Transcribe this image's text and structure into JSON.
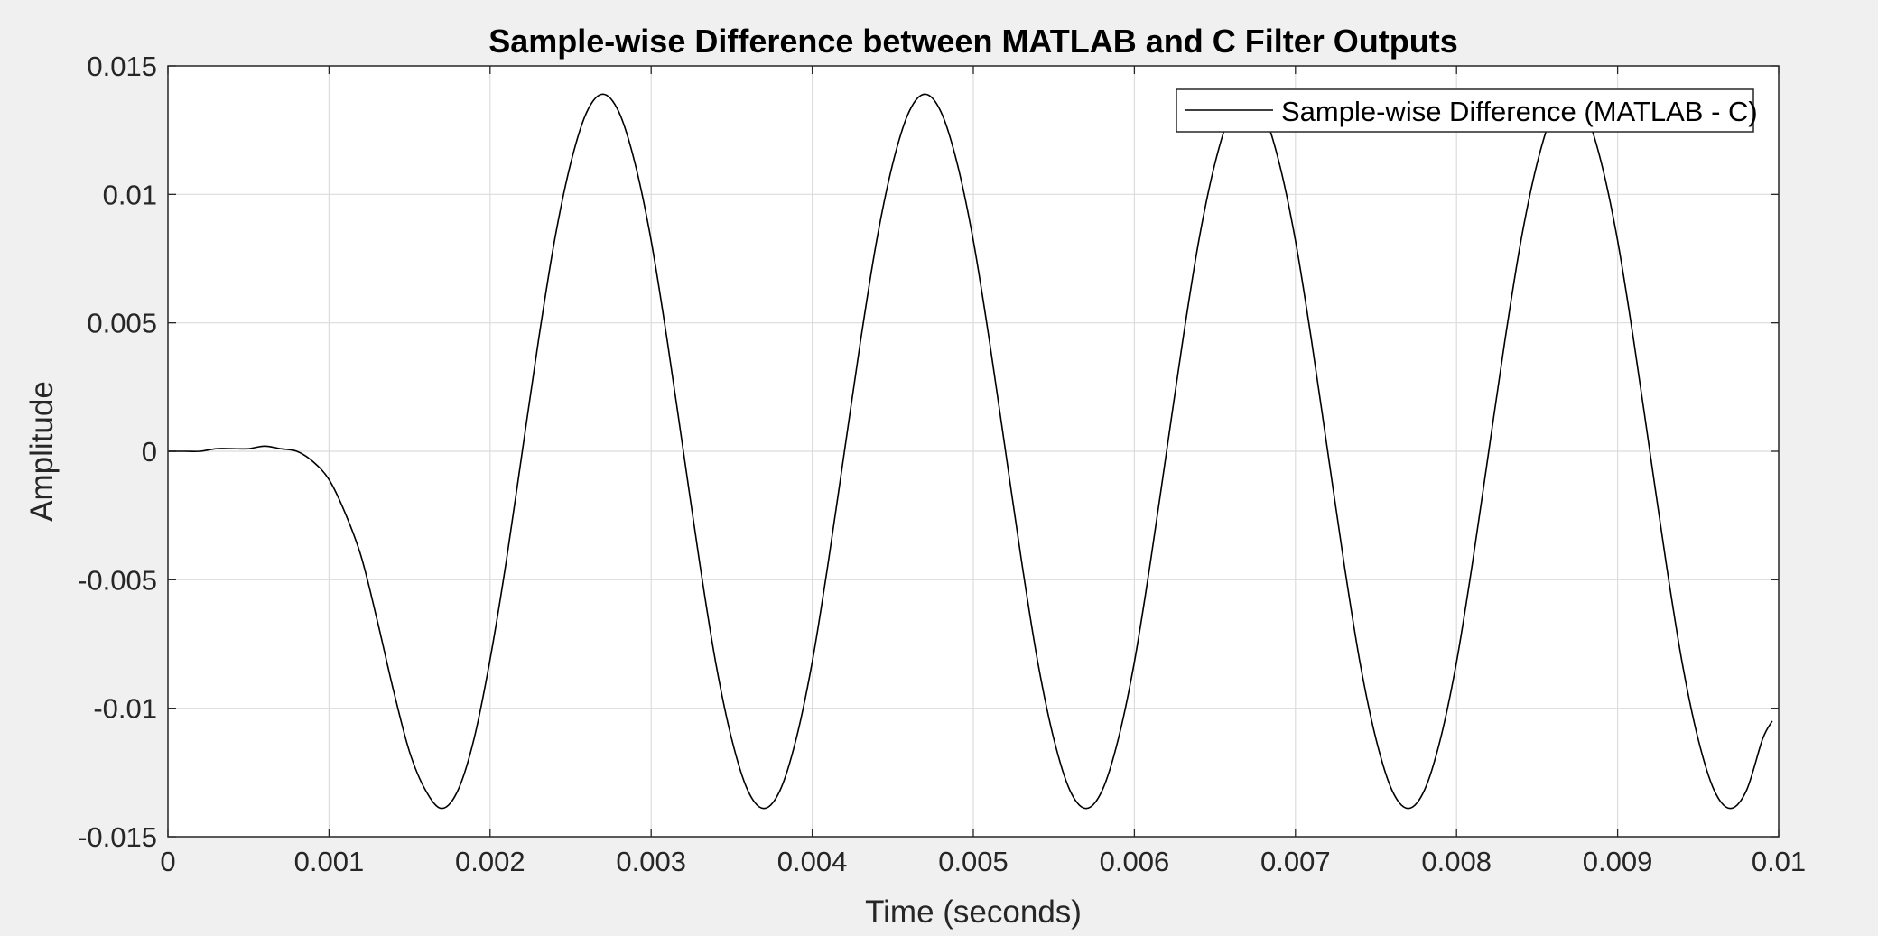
{
  "chart_data": {
    "type": "line",
    "title": "Sample-wise Difference between MATLAB and C Filter Outputs",
    "xlabel": "Time (seconds)",
    "ylabel": "Amplitude",
    "xlim": [
      0,
      0.01
    ],
    "ylim": [
      -0.015,
      0.015
    ],
    "x_ticks": [
      0,
      0.001,
      0.002,
      0.003,
      0.004,
      0.005,
      0.006,
      0.007,
      0.008,
      0.009,
      0.01
    ],
    "x_tick_labels": [
      "0",
      "0.001",
      "0.002",
      "0.003",
      "0.004",
      "0.005",
      "0.006",
      "0.007",
      "0.008",
      "0.009",
      "0.01"
    ],
    "y_ticks": [
      -0.015,
      -0.01,
      -0.005,
      0,
      0.005,
      0.01,
      0.015
    ],
    "y_tick_labels": [
      "-0.015",
      "-0.01",
      "-0.005",
      "0",
      "0.005",
      "0.01",
      "0.015"
    ],
    "grid": true,
    "legend_position": "top-right",
    "series": [
      {
        "name": "Sample-wise Difference (MATLAB - C)",
        "color": "#000000",
        "x": [
          0,
          0.0001,
          0.0002,
          0.0003,
          0.0004,
          0.0005,
          0.0006,
          0.0007,
          0.0008,
          0.0009,
          0.001,
          0.0011,
          0.0012,
          0.0013,
          0.0014,
          0.0015,
          0.0016,
          0.0017,
          0.0018,
          0.0019,
          0.002,
          0.0021,
          0.0022,
          0.0023,
          0.0024,
          0.0025,
          0.0026,
          0.0027,
          0.0028,
          0.0029,
          0.003,
          0.0031,
          0.0032,
          0.0033,
          0.0034,
          0.0035,
          0.0036,
          0.0037,
          0.0038,
          0.0039,
          0.004,
          0.0041,
          0.0042,
          0.0043,
          0.0044,
          0.0045,
          0.0046,
          0.0047,
          0.0048,
          0.0049,
          0.005,
          0.0051,
          0.0052,
          0.0053,
          0.0054,
          0.0055,
          0.0056,
          0.0057,
          0.0058,
          0.0059,
          0.006,
          0.0061,
          0.0062,
          0.0063,
          0.0064,
          0.0065,
          0.0066,
          0.0067,
          0.0068,
          0.0069,
          0.007,
          0.0071,
          0.0072,
          0.0073,
          0.0074,
          0.0075,
          0.0076,
          0.0077,
          0.0078,
          0.0079,
          0.008,
          0.0081,
          0.0082,
          0.0083,
          0.0084,
          0.0085,
          0.0086,
          0.0087,
          0.0088,
          0.0089,
          0.009,
          0.0091,
          0.0092,
          0.0093,
          0.0094,
          0.0095,
          0.0096,
          0.0097,
          0.0098,
          0.0099,
          0.00996
        ],
        "y": [
          0,
          0,
          0,
          0.0001,
          0.0001,
          0.0001,
          0.0002,
          0.0001,
          0,
          -0.0004,
          -0.0011,
          -0.0024,
          -0.0041,
          -0.0066,
          -0.0093,
          -0.0117,
          -0.0132,
          -0.0139,
          -0.0132,
          -0.0112,
          -0.0081,
          -0.0043,
          0,
          0.0043,
          0.0082,
          0.0112,
          0.0132,
          0.0139,
          0.0132,
          0.0112,
          0.0082,
          0.0043,
          0,
          -0.0043,
          -0.0082,
          -0.0112,
          -0.0132,
          -0.0139,
          -0.0132,
          -0.0112,
          -0.0082,
          -0.0043,
          0,
          0.0043,
          0.0082,
          0.0112,
          0.0132,
          0.0139,
          0.0132,
          0.0112,
          0.0082,
          0.0043,
          0,
          -0.0043,
          -0.0082,
          -0.0112,
          -0.0132,
          -0.0139,
          -0.0132,
          -0.0112,
          -0.0082,
          -0.0043,
          0,
          0.0043,
          0.0082,
          0.0112,
          0.0132,
          0.0139,
          0.0132,
          0.0112,
          0.0082,
          0.0043,
          0,
          -0.0043,
          -0.0082,
          -0.0112,
          -0.0132,
          -0.0139,
          -0.0132,
          -0.0112,
          -0.0082,
          -0.0043,
          0,
          0.0043,
          0.0082,
          0.0112,
          0.0132,
          0.0139,
          0.0132,
          0.0112,
          0.0082,
          0.0043,
          0,
          -0.0043,
          -0.0082,
          -0.0112,
          -0.0132,
          -0.0139,
          -0.0132,
          -0.0112,
          -0.0105
        ]
      }
    ]
  }
}
